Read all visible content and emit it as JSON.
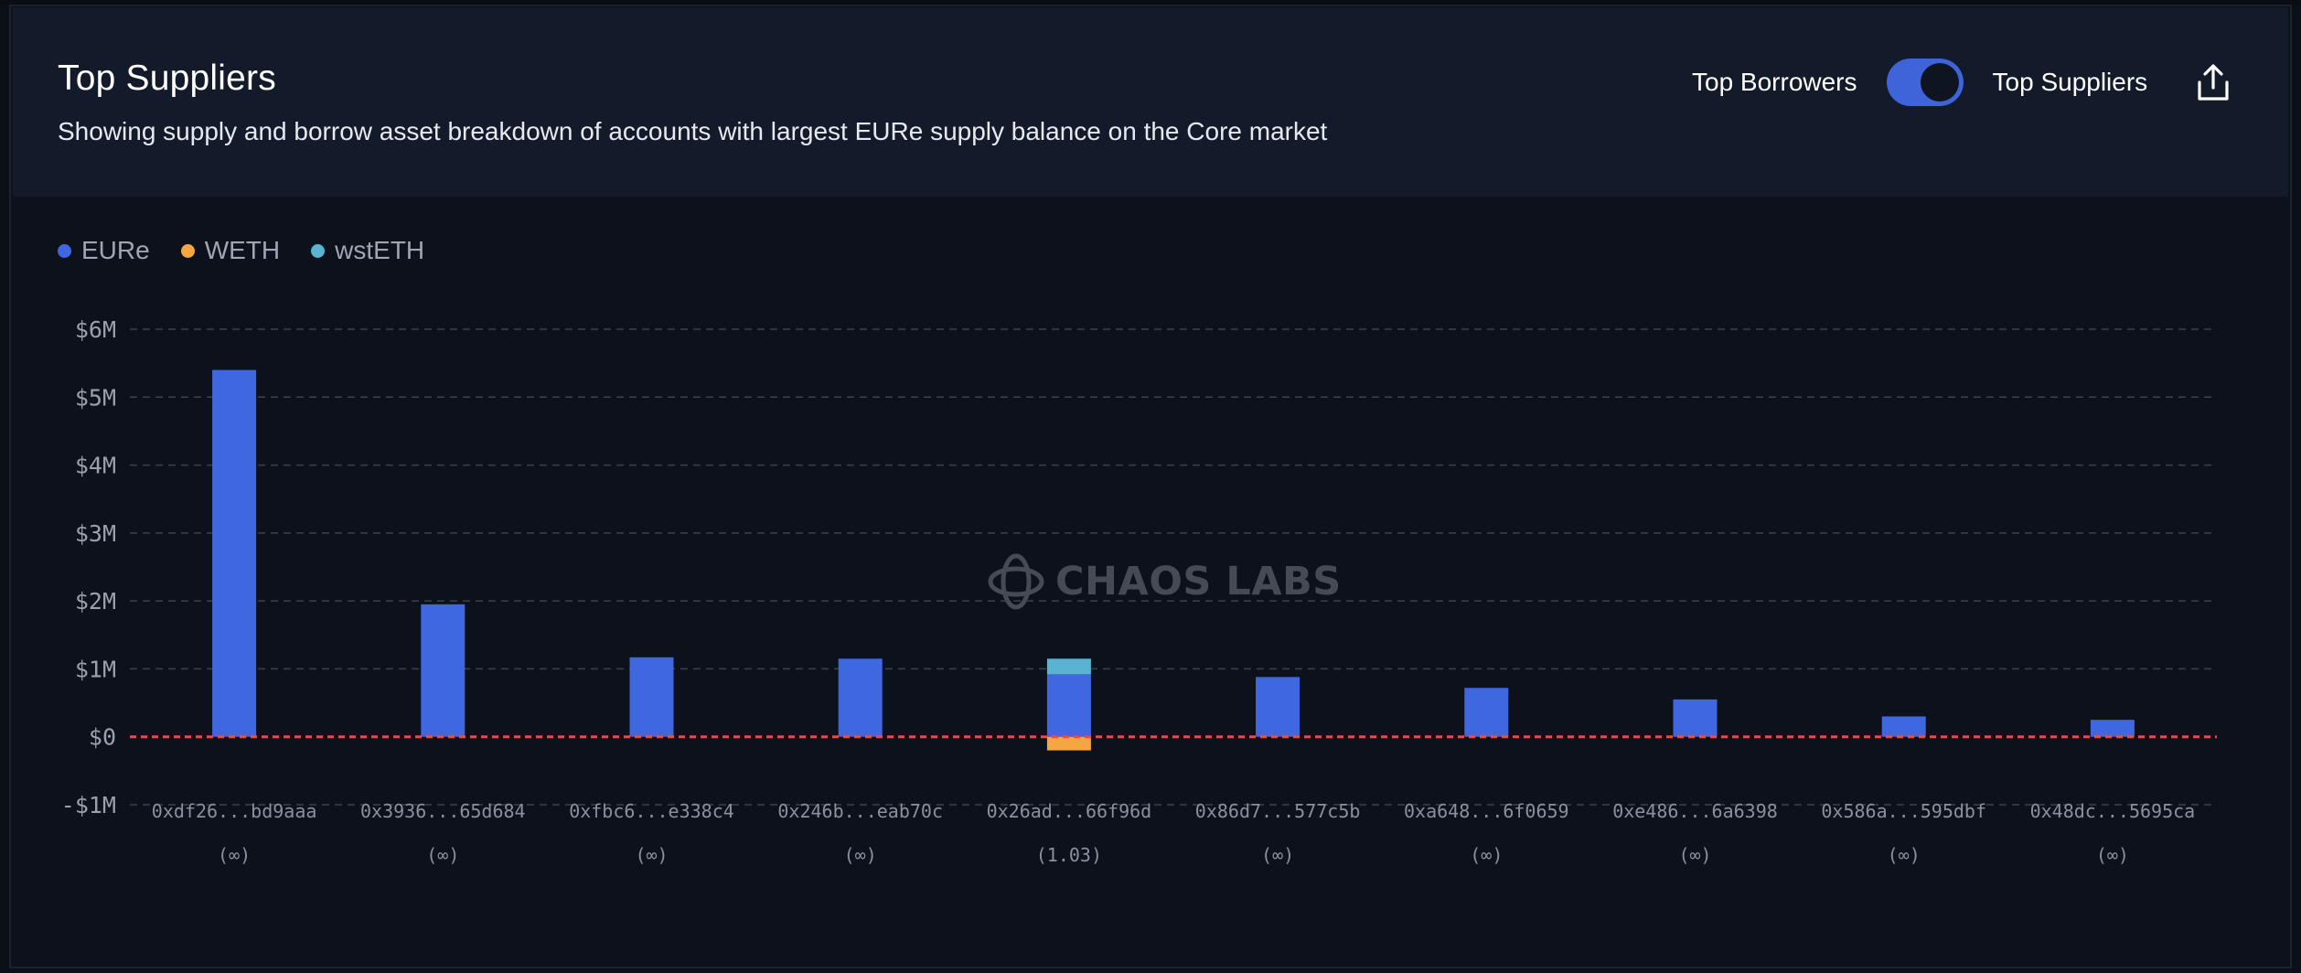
{
  "header": {
    "title": "Top Suppliers",
    "subtitle": "Showing supply and borrow asset breakdown of accounts with largest EURe supply balance on the Core market",
    "toggle_left_label": "Top Borrowers",
    "toggle_right_label": "Top Suppliers",
    "toggle_state": "Top Suppliers",
    "share_icon": "share-icon"
  },
  "watermark": {
    "text": "CHAOS LABS",
    "icon": "chaos-labs-logo-icon"
  },
  "colors": {
    "EURe": "#3f68e0",
    "WETH": "#f3a642",
    "wstETH": "#5ab3d0",
    "zero_line": "#e0504b",
    "grid": "#3a4150",
    "axis_text": "#9aa1ad",
    "tick_text": "#8a909c"
  },
  "chart_data": {
    "type": "bar",
    "stacked": true,
    "legend": [
      "EURe",
      "WETH",
      "wstETH"
    ],
    "legend_placement": "top-left",
    "categories": [
      "0xdf26...bd9aaa",
      "0x3936...65d684",
      "0xfbc6...e338c4",
      "0x246b...eab70c",
      "0x26ad...66f96d",
      "0x86d7...577c5b",
      "0xa648...6f0659",
      "0xe486...6a6398",
      "0x586a...595dbf",
      "0x48dc...5695ca"
    ],
    "health_factors": [
      "(∞)",
      "(∞)",
      "(∞)",
      "(∞)",
      "(1.03)",
      "(∞)",
      "(∞)",
      "(∞)",
      "(∞)",
      "(∞)"
    ],
    "series": [
      {
        "name": "EURe",
        "values": [
          5.4,
          1.95,
          1.17,
          1.15,
          0.92,
          0.88,
          0.72,
          0.55,
          0.3,
          0.25
        ]
      },
      {
        "name": "WETH",
        "values": [
          0,
          0,
          0,
          0,
          -0.2,
          0,
          0,
          0,
          0,
          0
        ]
      },
      {
        "name": "wstETH",
        "values": [
          0,
          0,
          0,
          0,
          0.23,
          0,
          0,
          0,
          0,
          0
        ]
      }
    ],
    "ylim": [
      -1,
      6
    ],
    "yticks": [
      -1,
      0,
      1,
      2,
      3,
      4,
      5,
      6
    ],
    "ytick_labels": [
      "-$1M",
      "$0",
      "$1M",
      "$2M",
      "$3M",
      "$4M",
      "$5M",
      "$6M"
    ],
    "unit": "$M",
    "grid": true
  }
}
